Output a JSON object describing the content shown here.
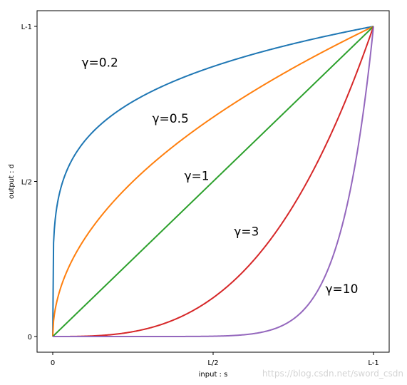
{
  "chart_data": {
    "type": "line",
    "xlabel": "input : s",
    "ylabel": "output : d",
    "xlim": [
      0,
      1
    ],
    "ylim": [
      0,
      1
    ],
    "x_ticks": [
      {
        "value": 0,
        "label": "0"
      },
      {
        "value": 0.5,
        "label": "L/2"
      },
      {
        "value": 1,
        "label": "L-1"
      }
    ],
    "y_ticks": [
      {
        "value": 0,
        "label": "0"
      },
      {
        "value": 0.5,
        "label": "L/2"
      },
      {
        "value": 1,
        "label": "L-1"
      }
    ],
    "grid": false,
    "legend": "none",
    "series": [
      {
        "gamma": 0.2,
        "color": "#1f77b4"
      },
      {
        "gamma": 0.5,
        "color": "#ff7f0e"
      },
      {
        "gamma": 1,
        "color": "#2ca02c"
      },
      {
        "gamma": 3,
        "color": "#d62728"
      },
      {
        "gamma": 10,
        "color": "#9467bd"
      }
    ],
    "annotations": [
      {
        "text": "γ=0.2",
        "x": 0.09,
        "y": 0.87
      },
      {
        "text": "γ=0.5",
        "x": 0.31,
        "y": 0.69
      },
      {
        "text": "γ=1",
        "x": 0.41,
        "y": 0.505
      },
      {
        "text": "γ=3",
        "x": 0.565,
        "y": 0.325
      },
      {
        "text": "γ=10",
        "x": 0.85,
        "y": 0.14
      }
    ]
  },
  "watermark": "https://blog.csdn.net/sword_csdn"
}
